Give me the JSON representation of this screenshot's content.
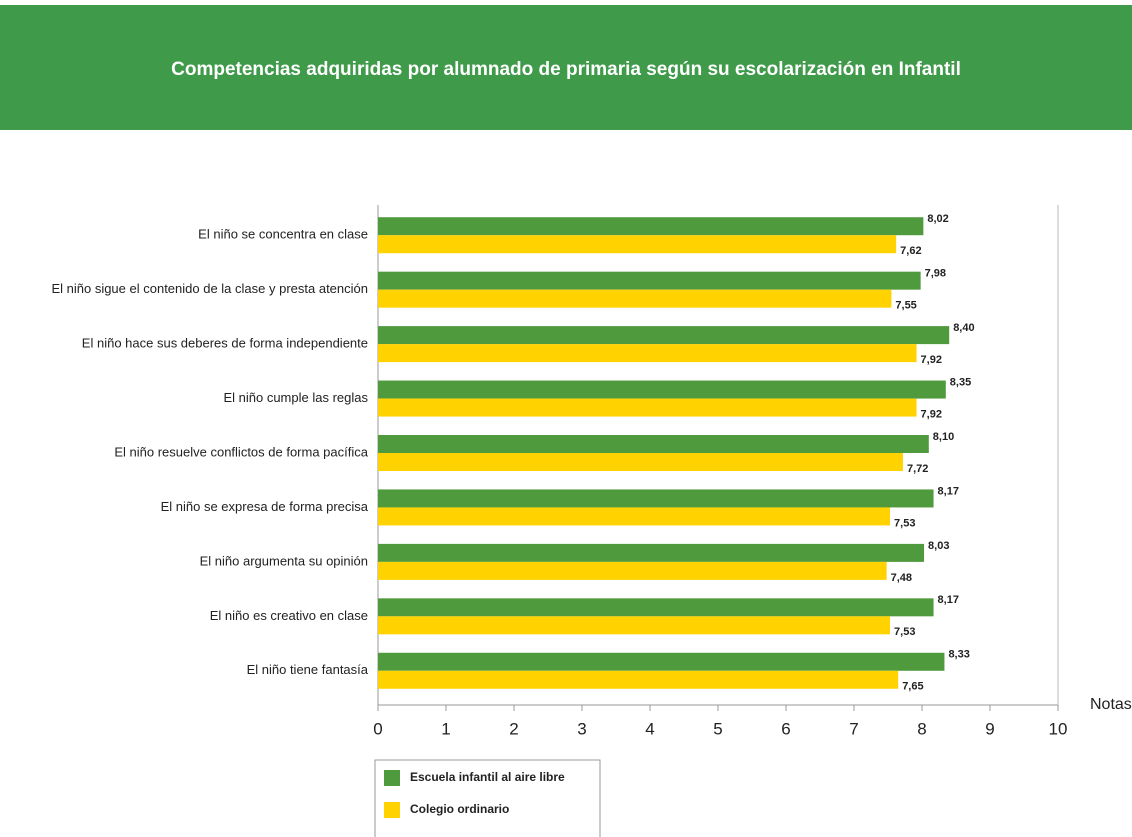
{
  "chart_data": {
    "type": "hbar",
    "title": "Competencias adquiridas por alumnado de primaria según su escolarización en Infantil",
    "x_label": "Notas",
    "categories": [
      "El niño se concentra en clase",
      "El niño sigue el contenido de la clase y presta atención",
      "El niño hace sus deberes de forma independiente",
      "El niño cumple las reglas",
      "El niño resuelve conflictos de forma pacífica",
      "El niño se expresa de forma precisa",
      "El niño argumenta su opinión",
      "El niño es creativo en clase",
      "El niño tiene fantasía"
    ],
    "series": [
      {
        "name": "Escuela infantil al aire libre",
        "color": "#4f9a3c",
        "values": [
          8.02,
          7.98,
          8.4,
          8.35,
          8.1,
          8.17,
          8.03,
          8.17,
          8.33
        ],
        "value_labels": [
          "8,02",
          "7,98",
          "8,40",
          "8,35",
          "8,10",
          "8,17",
          "8,03",
          "8,17",
          "8,33"
        ]
      },
      {
        "name": "Colegio ordinario",
        "color": "#ffd200",
        "values": [
          7.62,
          7.55,
          7.92,
          7.92,
          7.72,
          7.53,
          7.48,
          7.53,
          7.65
        ],
        "value_labels": [
          "7,62",
          "7,55",
          "7,92",
          "7,92",
          "7,72",
          "7,53",
          "7,48",
          "7,53",
          "7,65"
        ]
      }
    ],
    "xlim": [
      0,
      10
    ],
    "xticks": [
      0,
      1,
      2,
      3,
      4,
      5,
      6,
      7,
      8,
      9,
      10
    ],
    "grid": false
  }
}
